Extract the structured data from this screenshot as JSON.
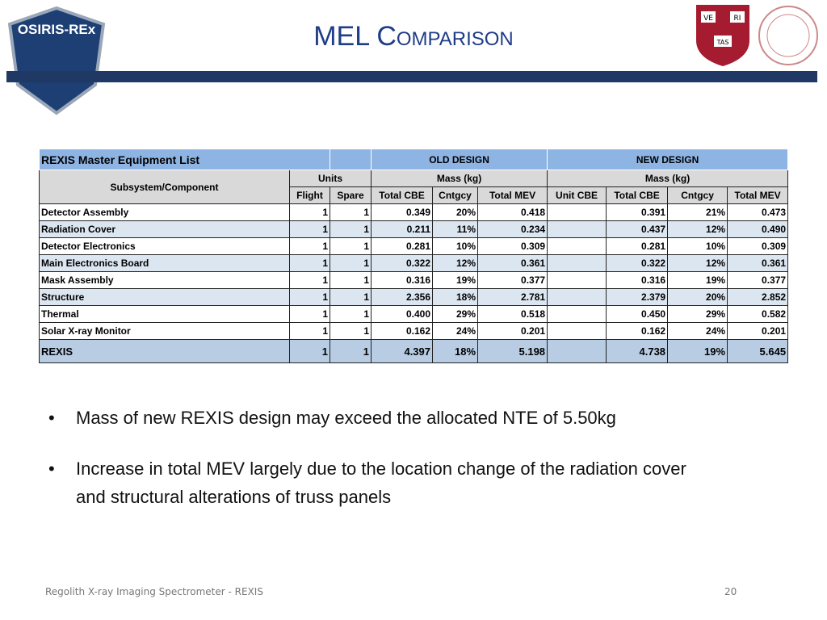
{
  "header": {
    "title": "MEL Comparison",
    "left_logo": "OSIRIS-REx",
    "right_logo_shield": [
      "VE",
      "RI",
      "TAS"
    ]
  },
  "table": {
    "title": "REXIS Master Equipment List",
    "old_design": "OLD DESIGN",
    "new_design": "NEW DESIGN",
    "component_header": "Subsystem/Component",
    "units_header": "Units",
    "old_mass_header": "Mass (kg)",
    "new_mass_header": "Mass (kg)",
    "subheaders": [
      "Flight",
      "Spare",
      "Total CBE",
      "Cntgcy",
      "Total MEV",
      "Unit CBE",
      "Total CBE",
      "Cntgcy",
      "Total MEV"
    ],
    "rows": [
      [
        "Detector Assembly",
        "1",
        "1",
        "0.349",
        "20%",
        "0.418",
        "0.391",
        "21%",
        "0.473"
      ],
      [
        "Radiation Cover",
        "1",
        "1",
        "0.211",
        "11%",
        "0.234",
        "0.437",
        "12%",
        "0.490"
      ],
      [
        "Detector Electronics",
        "1",
        "1",
        "0.281",
        "10%",
        "0.309",
        "0.281",
        "10%",
        "0.309"
      ],
      [
        "Main Electronics Board",
        "1",
        "1",
        "0.322",
        "12%",
        "0.361",
        "0.322",
        "12%",
        "0.361"
      ],
      [
        "Mask Assembly",
        "1",
        "1",
        "0.316",
        "19%",
        "0.377",
        "0.316",
        "19%",
        "0.377"
      ],
      [
        "Structure",
        "1",
        "1",
        "2.356",
        "18%",
        "2.781",
        "2.379",
        "20%",
        "2.852"
      ],
      [
        "Thermal",
        "1",
        "1",
        "0.400",
        "29%",
        "0.518",
        "0.450",
        "29%",
        "0.582"
      ],
      [
        "Solar X-ray Monitor",
        "1",
        "1",
        "0.162",
        "24%",
        "0.201",
        "0.162",
        "24%",
        "0.201"
      ]
    ],
    "total": [
      "REXIS",
      "1",
      "1",
      "4.397",
      "18%",
      "5.198",
      "4.738",
      "19%",
      "5.645"
    ]
  },
  "bullets": [
    "Mass of new REXIS design may exceed the allocated NTE of 5.50kg",
    "Increase in total MEV largely due to the location change of the radiation cover and structural alterations of truss panels"
  ],
  "footer": {
    "text": "Regolith X-ray Imaging Spectrometer - REXIS",
    "page": "20"
  }
}
